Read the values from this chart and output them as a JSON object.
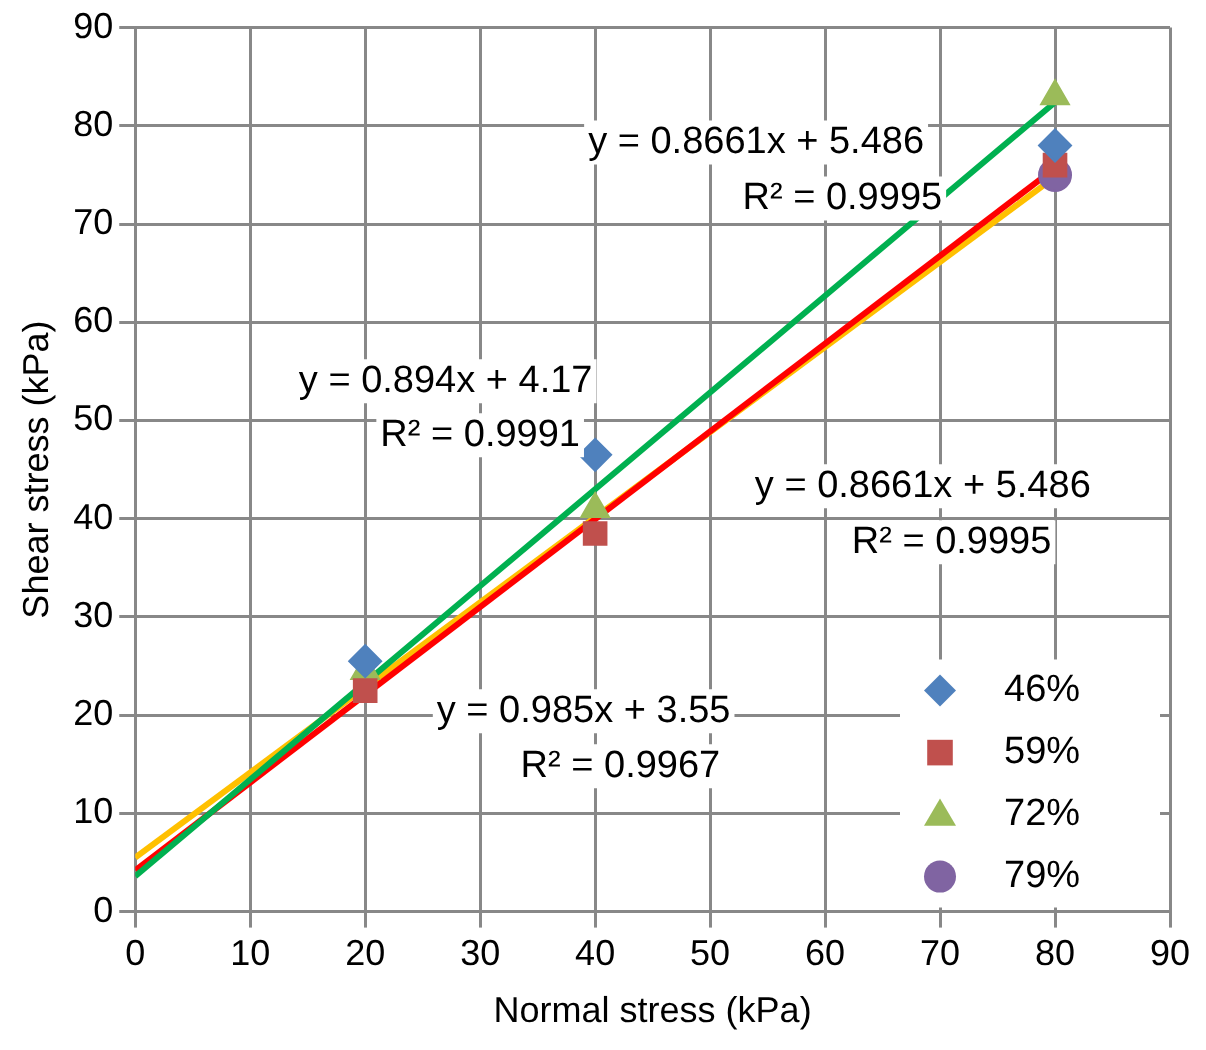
{
  "chart_data": {
    "type": "scatter",
    "xlabel": "Normal stress (kPa)",
    "ylabel": "Shear stress (kPa)",
    "xlim": [
      0,
      90
    ],
    "xticks": [
      0,
      10,
      20,
      30,
      40,
      50,
      60,
      70,
      80,
      90
    ],
    "ylim": [
      0,
      90
    ],
    "yticks": [
      0,
      10,
      20,
      30,
      40,
      50,
      60,
      70,
      80,
      90
    ],
    "grid": true,
    "legend": "bottom right",
    "series": [
      {
        "name": "46%",
        "color": "#4f81bd",
        "marker": "diamond",
        "x": [
          20,
          40,
          80
        ],
        "values": [
          25.5,
          46.5,
          78
        ]
      },
      {
        "name": "59%",
        "color": "#c0504d",
        "marker": "square",
        "x": [
          20,
          40,
          80
        ],
        "values": [
          22.5,
          38.5,
          76
        ]
      },
      {
        "name": "72%",
        "color": "#9bbb59",
        "marker": "triangle",
        "x": [
          20,
          40,
          80
        ],
        "values": [
          24.5,
          41,
          83
        ]
      },
      {
        "name": "79%",
        "color": "#8064a2",
        "marker": "circle",
        "x": [
          80
        ],
        "values": [
          75
        ]
      },
      {
        "type": "line",
        "color": "#00b050",
        "marker": "none",
        "x": [
          0,
          80
        ],
        "values": [
          3.6,
          82.4
        ]
      },
      {
        "type": "line",
        "color": "#ff0000",
        "marker": "none",
        "x": [
          0,
          80
        ],
        "values": [
          4.2,
          75.7
        ]
      },
      {
        "type": "line",
        "color": "#ffc000",
        "marker": "none",
        "x": [
          0,
          80
        ],
        "values": [
          5.5,
          74.8
        ]
      }
    ],
    "annotations": [
      "y = 0.8661x + 5.486",
      "R² = 0.9995",
      "y = 0.894x + 4.17",
      "R² = 0.9991",
      "y = 0.8661x + 5.486",
      "R² = 0.9995",
      "y = 0.985x + 3.55",
      "R² = 0.9967"
    ]
  }
}
